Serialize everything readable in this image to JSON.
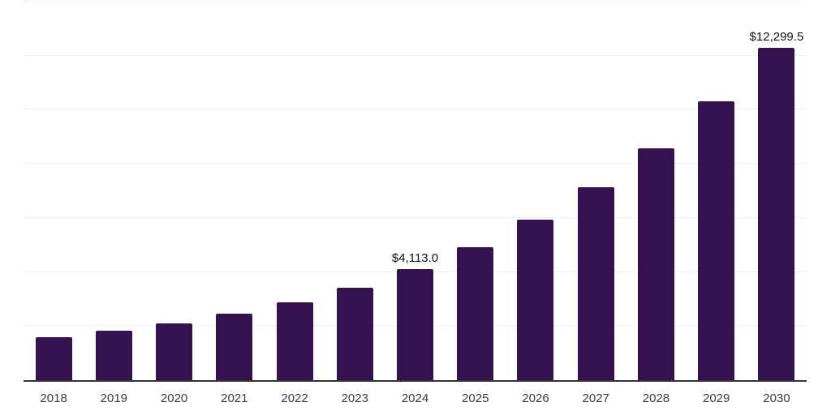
{
  "chart_data": {
    "type": "bar",
    "title": "",
    "xlabel": "",
    "ylabel": "",
    "categories": [
      "2018",
      "2019",
      "2020",
      "2021",
      "2022",
      "2023",
      "2024",
      "2025",
      "2026",
      "2027",
      "2028",
      "2029",
      "2030"
    ],
    "values": [
      1600,
      1840,
      2110,
      2450,
      2880,
      3420,
      4113.0,
      4920,
      5940,
      7130,
      8580,
      10300,
      12299.5
    ],
    "data_labels": [
      "",
      "",
      "",
      "",
      "",
      "",
      "$4,113.0",
      "",
      "",
      "",
      "",
      "",
      "$12,299.5"
    ],
    "ylim": [
      0,
      14000
    ],
    "gridline_step": 2000,
    "grid": "horizontal",
    "legend_position": "none",
    "colors": {
      "bar": "#35114F",
      "axis": "#333333",
      "gridline": "#efefef",
      "tick_label": "#3b3b3b",
      "data_label": "#111111",
      "background": "#ffffff"
    }
  }
}
